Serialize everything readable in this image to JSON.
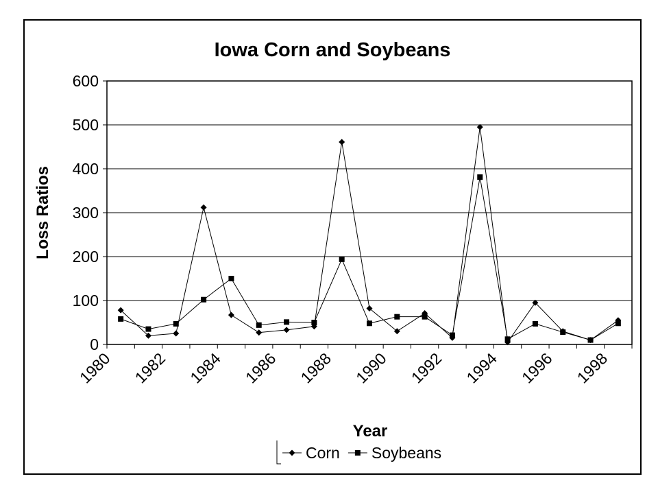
{
  "chart_data": {
    "type": "line",
    "title": "Iowa Corn and Soybeans",
    "xlabel": "Year",
    "ylabel": "Loss Ratios",
    "ylim": [
      0,
      600
    ],
    "yticks": [
      "0",
      "100",
      "200",
      "300",
      "400",
      "500",
      "600"
    ],
    "xlim": [
      1980,
      1999
    ],
    "xticks": [
      "1980",
      "1982",
      "1984",
      "1986",
      "1988",
      "1990",
      "1992",
      "1994",
      "1996",
      "1998"
    ],
    "grid": "horizontal",
    "legend": "bottom",
    "x": [
      1980.5,
      1981.5,
      1982.5,
      1983.5,
      1984.5,
      1985.5,
      1986.5,
      1987.5,
      1988.5,
      1989.5,
      1990.5,
      1991.5,
      1992.5,
      1993.5,
      1994.5,
      1995.5,
      1996.5,
      1997.5,
      1998.5
    ],
    "series": [
      {
        "name": "Corn",
        "marker": "diamond",
        "values": [
          78,
          20,
          25,
          312,
          67,
          27,
          33,
          41,
          461,
          82,
          30,
          71,
          15,
          495,
          5,
          95,
          30,
          10,
          55
        ]
      },
      {
        "name": "Soybeans",
        "marker": "square",
        "values": [
          58,
          35,
          47,
          102,
          150,
          44,
          51,
          50,
          194,
          48,
          63,
          63,
          21,
          381,
          12,
          47,
          28,
          10,
          48
        ]
      }
    ]
  }
}
